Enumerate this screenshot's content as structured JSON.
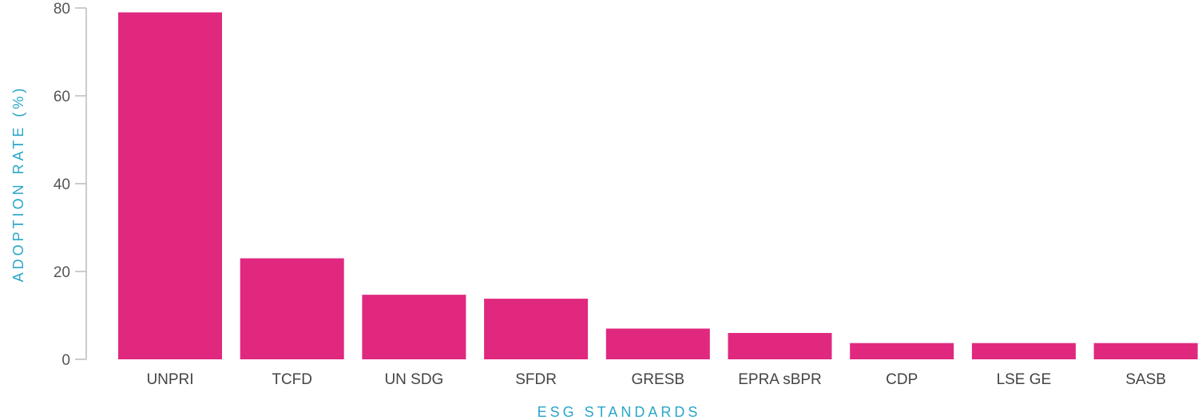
{
  "chart_data": {
    "type": "bar",
    "categories": [
      "UNPRI",
      "TCFD",
      "UN SDG",
      "SFDR",
      "GRESB",
      "EPRA sBPR",
      "CDP",
      "LSE GE",
      "SASB"
    ],
    "values": [
      79,
      23,
      14.7,
      13.8,
      7,
      6,
      3.7,
      3.7,
      3.7
    ],
    "xlabel": "ESG STANDARDS",
    "ylabel": "ADOPTION RATE (%)",
    "ylim": [
      0,
      80
    ],
    "yticks": [
      0,
      20,
      40,
      60,
      80
    ],
    "grid": false,
    "bar_color": "#e0287f",
    "axis_color": "#bbbbbb",
    "axis_title_color": "#2aa6c9"
  }
}
